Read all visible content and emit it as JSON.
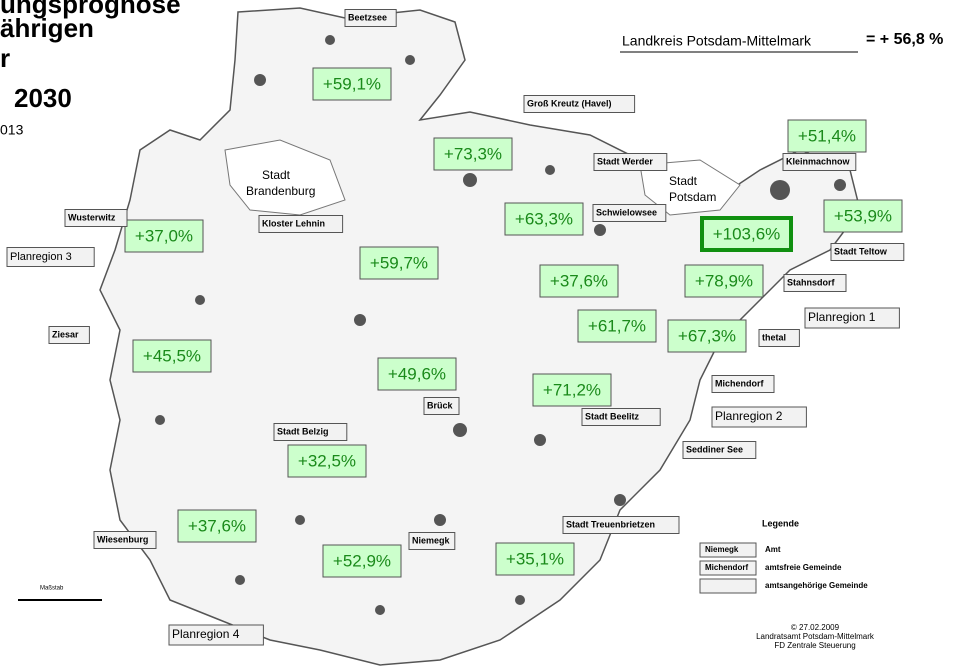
{
  "title_lines": [
    "ungsprognose",
    "ährigen",
    "r",
    "2030",
    "013"
  ],
  "header": {
    "label": "Landkreis Potsdam-Mittelmark",
    "value": "= + 56,8 %"
  },
  "growth_labels": [
    "+59,1%",
    "+73,3%",
    "+51,4%",
    "+63,3%",
    "+53,9%",
    "+103,6%",
    "+37,0%",
    "+59,7%",
    "+37,6%",
    "+78,9%",
    "+61,7%",
    "+67,3%",
    "+45,5%",
    "+49,6%",
    "+71,2%",
    "+32,5%",
    "+37,6%",
    "+52,9%",
    "+35,1%"
  ],
  "places": [
    "Beetzsee",
    "Groß Kreutz (Havel)",
    "Stadt Werder",
    "Schwielowsee",
    "Stadt",
    "Brandenburg",
    "Stadt",
    "Potsdam",
    "Kleinmachnow",
    "Stadt Teltow",
    "Stahnsdorf",
    "Planregion 1",
    "Wusterwitz",
    "Planregion 3",
    "Kloster Lehnin",
    "Ziesar",
    "thetal",
    "Michendorf",
    "Planregion 2",
    "Seddiner See",
    "Stadt Beelitz",
    "Brück",
    "Stadt Belzig",
    "Stadt Treuenbrietzen",
    "Niemegk",
    "Wiesenburg",
    "Planregion 4",
    "Maßstab"
  ],
  "legend": {
    "title": "Legende",
    "items": [
      {
        "sample": "Niemegk",
        "text": "Amt"
      },
      {
        "sample": "Michendorf",
        "text": "amtsfreie Gemeinde"
      },
      {
        "sample": "",
        "text": "amtsangehörige Gemeinde"
      }
    ]
  },
  "credit": [
    "© 27.02.2009",
    "Landratsamt Potsdam-Mittelmark",
    "FD Zentrale Steuerung"
  ]
}
